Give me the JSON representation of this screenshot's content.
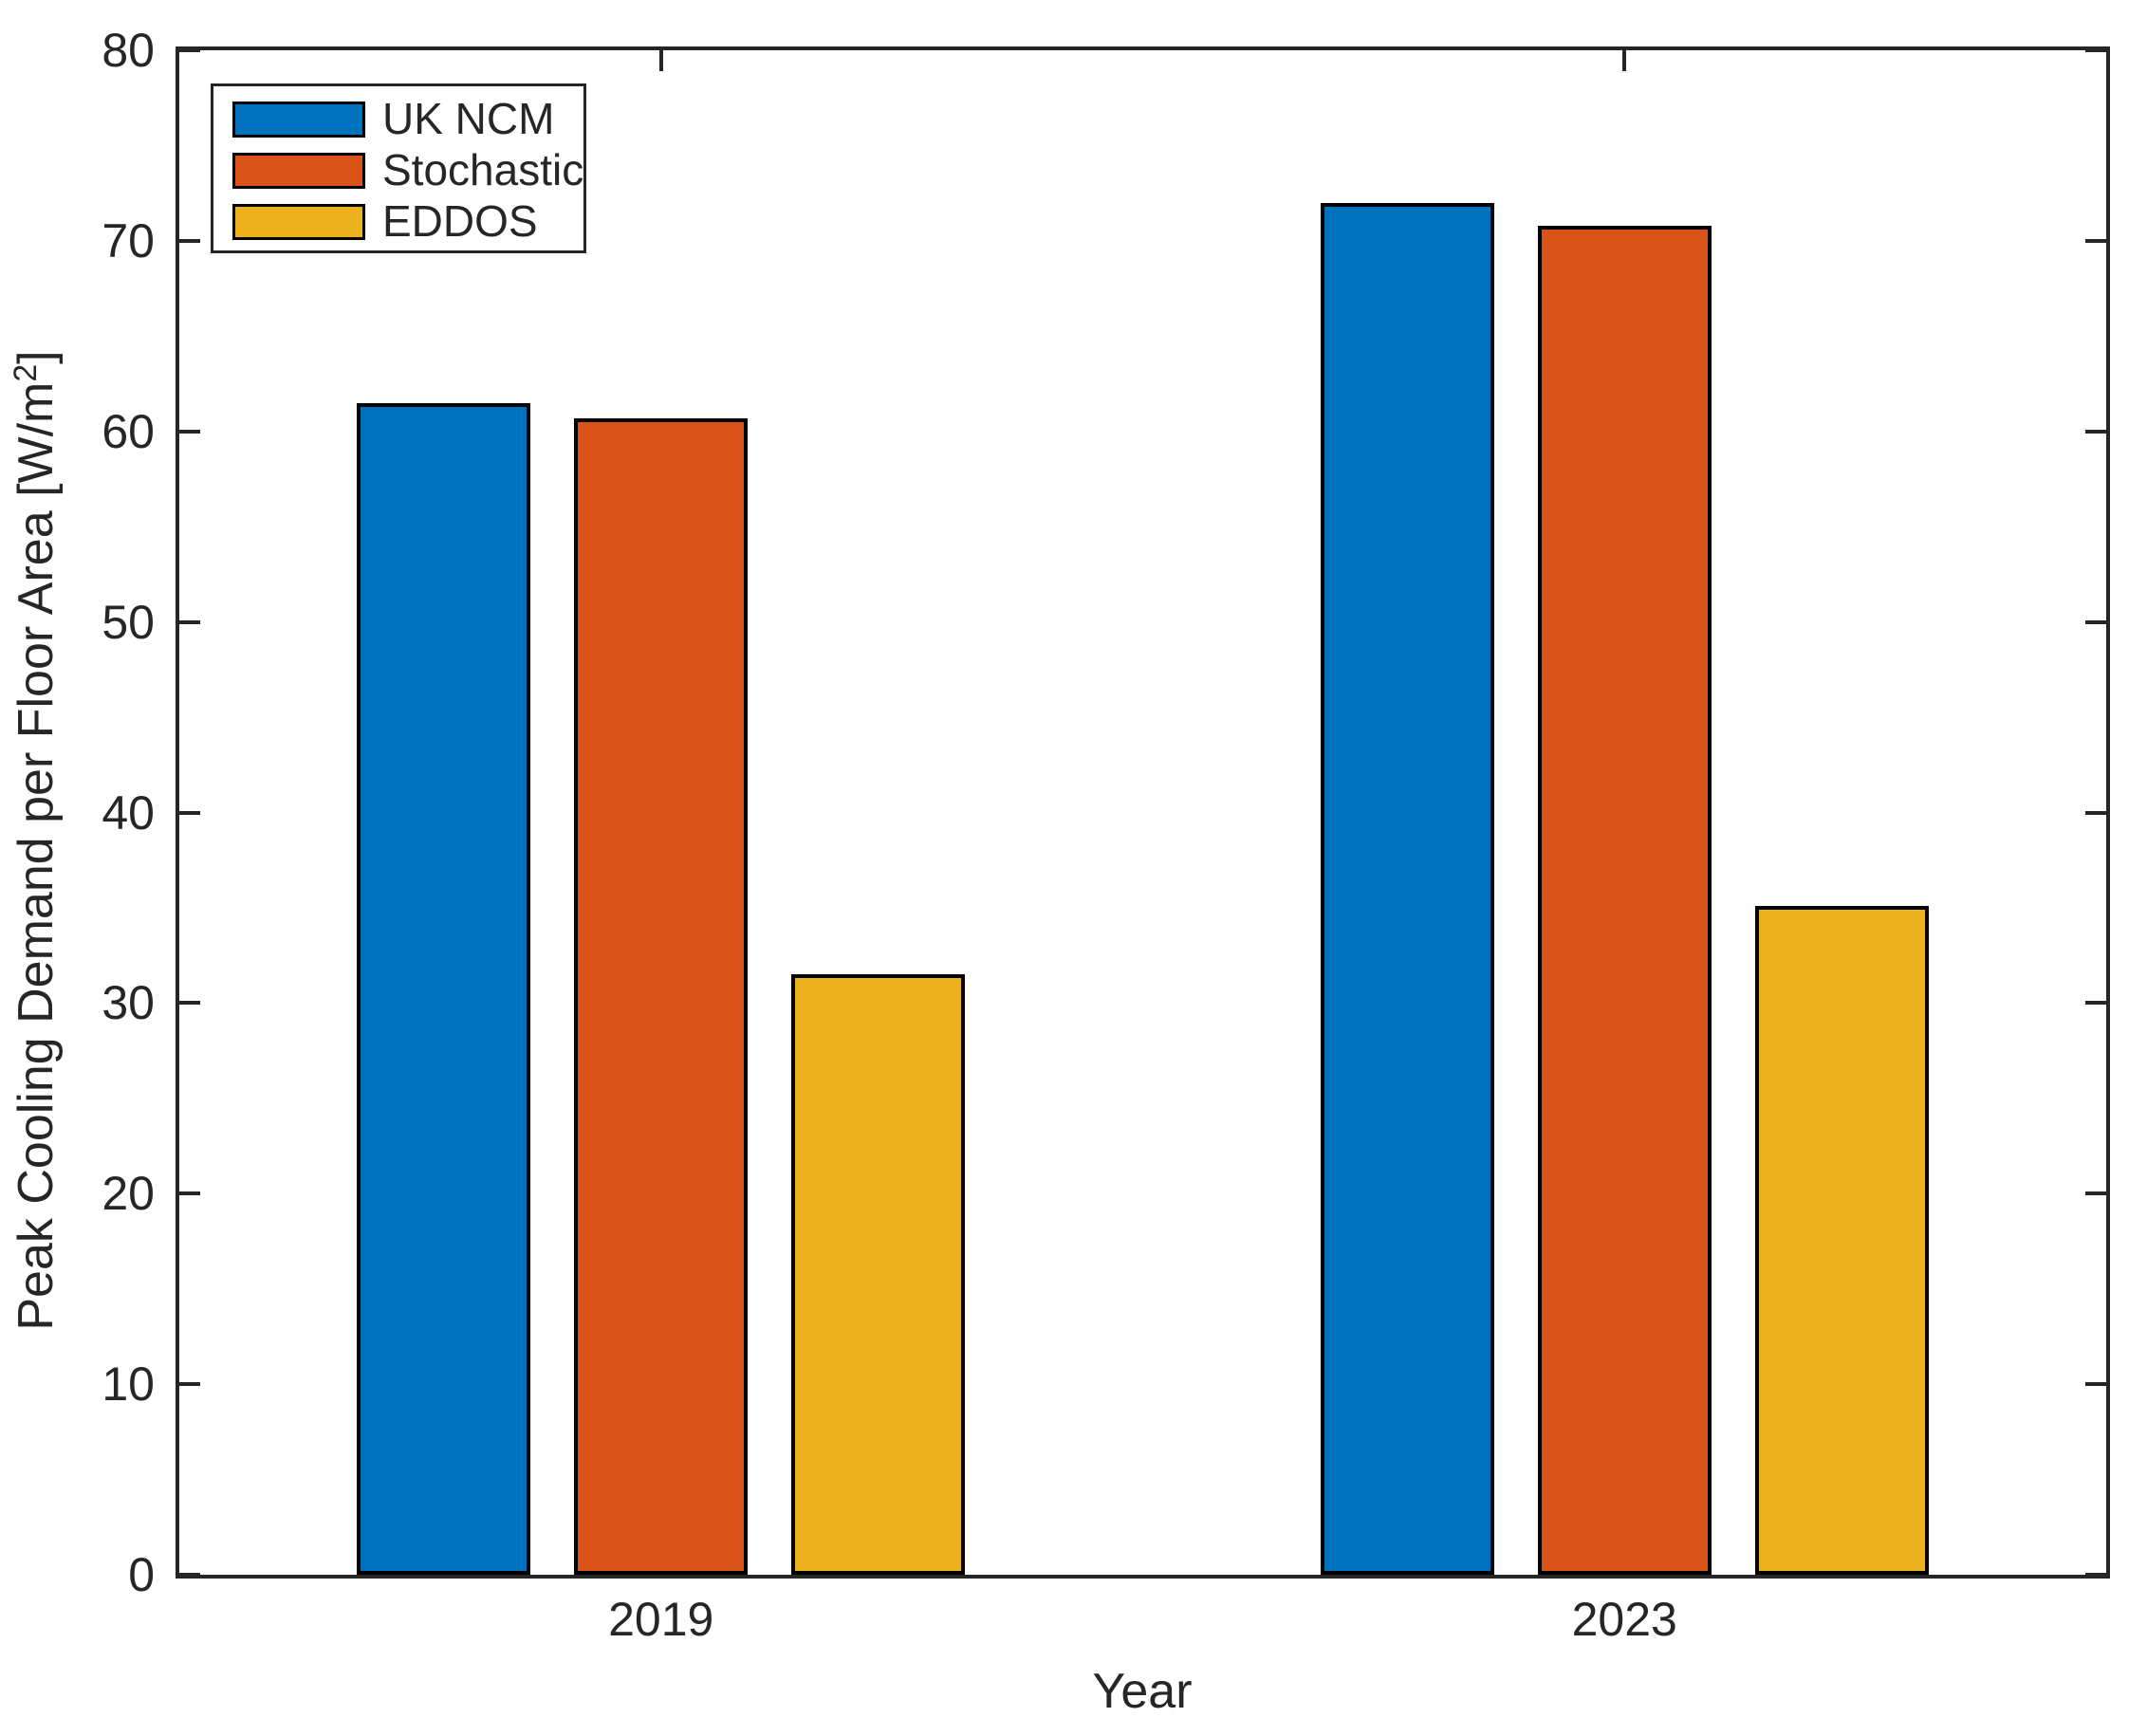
{
  "chart_data": {
    "type": "bar",
    "title": "",
    "xlabel": "Year",
    "ylabel": "Peak Cooling Demand per Floor Area [W/m^2]",
    "ylabel_parts": {
      "prefix": "Peak Cooling Demand per Floor Area [W/m",
      "superscript": "2",
      "suffix": "]"
    },
    "categories": [
      "2019",
      "2023"
    ],
    "series": [
      {
        "name": "UK NCM",
        "color": "#0072BD",
        "values": [
          61.5,
          72.0
        ]
      },
      {
        "name": "Stochastic",
        "color": "#D95319",
        "values": [
          60.7,
          70.8
        ]
      },
      {
        "name": "EDDOS",
        "color": "#EDB120",
        "values": [
          31.5,
          35.1
        ]
      }
    ],
    "ylim": [
      0,
      80
    ],
    "yticks": [
      0,
      10,
      20,
      30,
      40,
      50,
      60,
      70,
      80
    ],
    "grid": false,
    "legend_position": "top-left",
    "bar_edge_color": "#000000",
    "axis_color": "#262626",
    "background_color": "#FFFFFF"
  }
}
